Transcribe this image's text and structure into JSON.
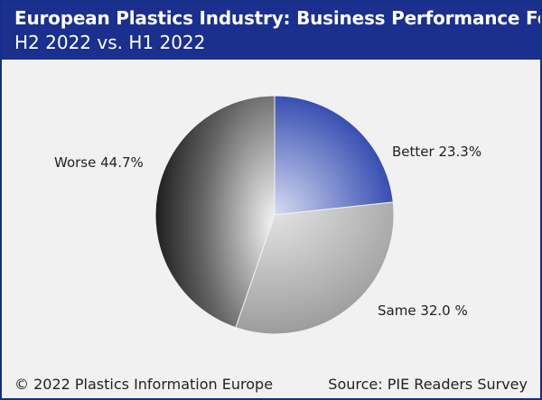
{
  "header": {
    "title": "European Plastics Industry: Business Performance Forecast",
    "subtitle": "H2 2022 vs. H1 2022"
  },
  "footer": {
    "copyright": "© 2022 Plastics Information Europe",
    "source": "Source: PIE Readers Survey"
  },
  "colors": {
    "header_bg": "#1b2f8f",
    "better": "#1f3aa8",
    "same": "#9a9a9a",
    "worse": "#111111"
  },
  "chart_data": {
    "type": "pie",
    "slices": [
      {
        "name": "Better",
        "value": 23.3,
        "label": "Better 23.3%"
      },
      {
        "name": "Same",
        "value": 32.0,
        "label": "Same 32.0 %"
      },
      {
        "name": "Worse",
        "value": 44.7,
        "label": "Worse 44.7%"
      }
    ],
    "start": "12 o'clock",
    "direction": "clockwise"
  }
}
